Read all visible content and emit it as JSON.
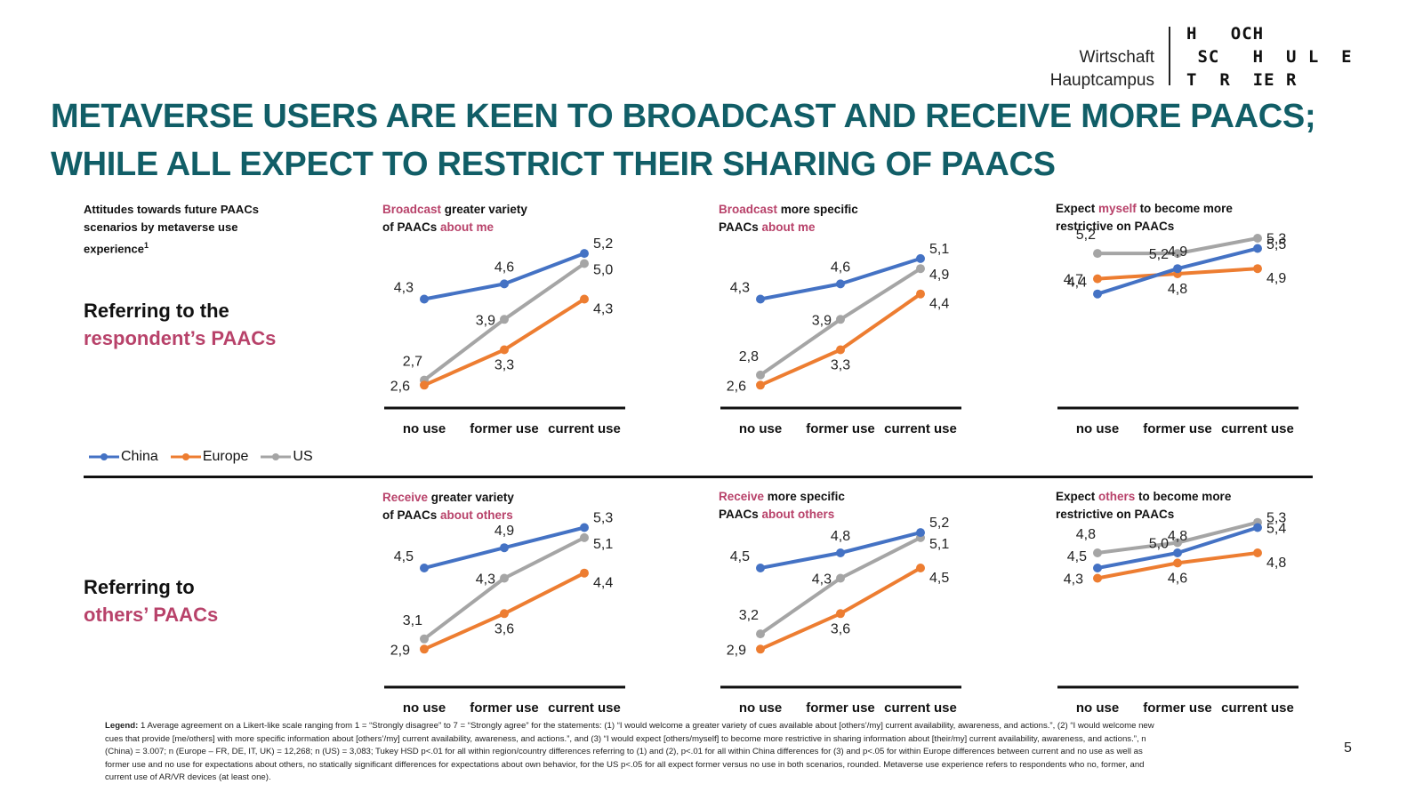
{
  "logo": {
    "left_line1": "Wirtschaft",
    "left_line2": "Hauptcampus",
    "right_line1": "H   OCH",
    "right_line2": " SC   H  U L  E",
    "right_line3": "T  R  IE R"
  },
  "title": {
    "line1": "METAVERSE USERS ARE KEEN TO BROADCAST AND RECEIVE MORE PAACS;",
    "line2": "WHILE ALL EXPECT TO RESTRICT THEIR SHARING OF PAACS"
  },
  "intro": {
    "text": "Attitudes towards future PAACs scenarios by metaverse use experience",
    "footnote_mark": "1"
  },
  "rows": [
    {
      "line1": "Referring to the",
      "line2": "respondent’s PAACs"
    },
    {
      "line1": "Referring to",
      "line2": "others’ PAACs"
    }
  ],
  "legend": [
    {
      "name": "China",
      "color": "#4472c4"
    },
    {
      "name": "Europe",
      "color": "#ed7d31"
    },
    {
      "name": "US",
      "color": "#a5a5a5"
    }
  ],
  "colors": {
    "accent": "#b8426a",
    "title": "#115e67"
  },
  "chart_titles": [
    {
      "a1": "Broadcast",
      "t1": " greater variety",
      "t2": "of PAACs ",
      "a2": "about me"
    },
    {
      "a1": "Broadcast",
      "t1": " more specific",
      "t2": "PAACs ",
      "a2": "about me"
    },
    {
      "p0": "Expect ",
      "a1": "myself",
      "t1": " to become more",
      "t2": "restrictive on PAACs",
      "a2": ""
    },
    {
      "a1": "Receive",
      "t1": " greater variety",
      "t2": "of PAACs ",
      "a2": "about others"
    },
    {
      "a1": "Receive",
      "t1": " more specific",
      "t2": "PAACs ",
      "a2": "about others"
    },
    {
      "p0": "Expect ",
      "a1": "others",
      "t1": " to become more",
      "t2": "restrictive on PAACs",
      "a2": ""
    }
  ],
  "chart_data": [
    {
      "type": "line",
      "title": "Broadcast greater variety of PAACs about me",
      "categories": [
        "no use",
        "former use",
        "current use"
      ],
      "series": [
        {
          "name": "China",
          "values": [
            4.3,
            4.6,
            5.2
          ],
          "labels": [
            "4,3",
            "4,6",
            "5,2"
          ]
        },
        {
          "name": "Europe",
          "values": [
            2.6,
            3.3,
            4.3
          ],
          "labels": [
            "2,6",
            "3,3",
            "4,3"
          ]
        },
        {
          "name": "US",
          "values": [
            2.7,
            3.9,
            5.0
          ],
          "labels": [
            "2,7",
            "3,9",
            "5,0"
          ]
        }
      ],
      "xlabel": "",
      "ylabel": "",
      "ylim": [
        2,
        6
      ],
      "grid": false,
      "legend": "bottom-left"
    },
    {
      "type": "line",
      "title": "Broadcast more specific PAACs about me",
      "categories": [
        "no use",
        "former use",
        "current use"
      ],
      "series": [
        {
          "name": "China",
          "values": [
            4.3,
            4.6,
            5.1
          ],
          "labels": [
            "4,3",
            "4,6",
            "5,1"
          ]
        },
        {
          "name": "Europe",
          "values": [
            2.6,
            3.3,
            4.4
          ],
          "labels": [
            "2,6",
            "3,3",
            "4,4"
          ]
        },
        {
          "name": "US",
          "values": [
            2.8,
            3.9,
            4.9
          ],
          "labels": [
            "2,8",
            "3,9",
            "4,9"
          ]
        }
      ],
      "xlabel": "",
      "ylabel": "",
      "ylim": [
        2,
        6
      ],
      "grid": false
    },
    {
      "type": "line",
      "title": "Expect myself to become more restrictive on PAACs",
      "categories": [
        "no use",
        "former use",
        "current use"
      ],
      "series": [
        {
          "name": "China",
          "values": [
            4.4,
            4.9,
            5.3
          ],
          "labels": [
            "4,4",
            "4,9",
            "5,3"
          ]
        },
        {
          "name": "Europe",
          "values": [
            4.7,
            4.8,
            4.9
          ],
          "labels": [
            "4,7",
            "4,8",
            "4,9"
          ]
        },
        {
          "name": "US",
          "values": [
            5.2,
            5.2,
            5.5
          ],
          "labels": [
            "5,2",
            "5,2",
            "5,5"
          ]
        }
      ],
      "xlabel": "",
      "ylabel": "",
      "ylim": [
        2,
        6
      ],
      "grid": false
    },
    {
      "type": "line",
      "title": "Receive greater variety of PAACs about others",
      "categories": [
        "no use",
        "former use",
        "current use"
      ],
      "series": [
        {
          "name": "China",
          "values": [
            4.5,
            4.9,
            5.3
          ],
          "labels": [
            "4,5",
            "4,9",
            "5,3"
          ]
        },
        {
          "name": "Europe",
          "values": [
            2.9,
            3.6,
            4.4
          ],
          "labels": [
            "2,9",
            "3,6",
            "4,4"
          ]
        },
        {
          "name": "US",
          "values": [
            3.1,
            4.3,
            5.1
          ],
          "labels": [
            "3,1",
            "4,3",
            "5,1"
          ]
        }
      ],
      "xlabel": "",
      "ylabel": "",
      "ylim": [
        2,
        6
      ],
      "grid": false
    },
    {
      "type": "line",
      "title": "Receive more specific PAACs about others",
      "categories": [
        "no use",
        "former use",
        "current use"
      ],
      "series": [
        {
          "name": "China",
          "values": [
            4.5,
            4.8,
            5.2
          ],
          "labels": [
            "4,5",
            "4,8",
            "5,2"
          ]
        },
        {
          "name": "Europe",
          "values": [
            2.9,
            3.6,
            4.5
          ],
          "labels": [
            "2,9",
            "3,6",
            "4,5"
          ]
        },
        {
          "name": "US",
          "values": [
            3.2,
            4.3,
            5.1
          ],
          "labels": [
            "3,2",
            "4,3",
            "5,1"
          ]
        }
      ],
      "xlabel": "",
      "ylabel": "",
      "ylim": [
        2,
        6
      ],
      "grid": false
    },
    {
      "type": "line",
      "title": "Expect others to become more restrictive on PAACs",
      "categories": [
        "no use",
        "former use",
        "current use"
      ],
      "series": [
        {
          "name": "China",
          "values": [
            4.5,
            4.8,
            5.3
          ],
          "labels": [
            "4,5",
            "4,8",
            "5,3"
          ]
        },
        {
          "name": "Europe",
          "values": [
            4.3,
            4.6,
            4.8
          ],
          "labels": [
            "4,3",
            "4,6",
            "4,8"
          ]
        },
        {
          "name": "US",
          "values": [
            4.8,
            5.0,
            5.4
          ],
          "labels": [
            "4,8",
            "5,0",
            "5,4"
          ]
        }
      ],
      "xlabel": "",
      "ylabel": "",
      "ylim": [
        2,
        6
      ],
      "grid": false
    }
  ],
  "footnote": {
    "label": "Legend:",
    "text": " 1 Average agreement on a Likert-like scale ranging from 1 = “Strongly disagree” to 7 = “Strongly agree” for the statements: (1) “I would welcome a greater variety of cues available about [others’/my] current availability, awareness, and actions.”, (2) “I would welcome new cues that provide [me/others] with more specific information about [others’/my] current availability, awareness, and actions.”, and (3) “I would expect [others/myself] to become more restrictive in sharing information about [their/my] current availability, awareness, and actions.”, n (China) = 3.007; n (Europe – FR, DE, IT, UK) = 12,268; n (US) = 3,083; Tukey HSD p<.01 for all within region/country differences referring to (1) and (2), p<.01 for all within China differences for (3) and p<.05 for within Europe differences between current and no use as well as former use and no use for expectations about others, no statically significant differences for expectations about own behavior, for the US p<.05 for all expect former versus no use in both scenarios, rounded. Metaverse use experience refers to respondents who no, former, and current use of AR/VR devices (at least one)."
  },
  "page_number": "5"
}
